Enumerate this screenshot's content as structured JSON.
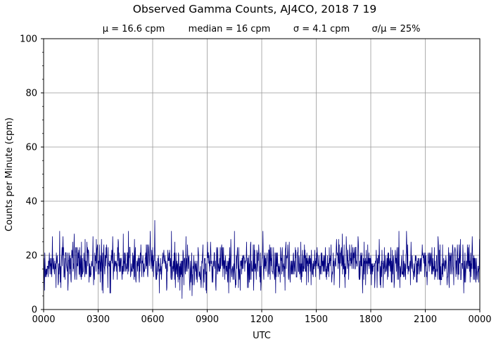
{
  "chart_data": {
    "type": "line",
    "title": "Observed Gamma Counts, AJ4CO, 2018 7 19",
    "subtitle": {
      "mean": "μ = 16.6 cpm",
      "median": "median = 16 cpm",
      "sigma": "σ = 4.1 cpm",
      "ratio": "σ/μ = 25%"
    },
    "xlabel": "UTC",
    "ylabel": "Counts per Minute (cpm)",
    "x_ticks": [
      "0000",
      "0300",
      "0600",
      "0900",
      "1200",
      "1500",
      "1800",
      "2100",
      "0000"
    ],
    "y_ticks": [
      0,
      20,
      40,
      60,
      80,
      100
    ],
    "ylim": [
      0,
      100
    ],
    "xlim_minutes": [
      0,
      1440
    ],
    "grid": true,
    "series": [
      {
        "color": "#000080",
        "samples_per_day": 1440,
        "baseline_cpm": 16.6,
        "spread_cpm": 4.1,
        "typical_min": 6,
        "typical_max": 29,
        "notable_peaks": [
          {
            "time": "0607",
            "cpm": 33
          },
          {
            "time": "1030",
            "cpm": 29
          },
          {
            "time": "0440",
            "cpm": 29
          },
          {
            "time": "1958",
            "cpm": 29
          }
        ],
        "notable_dips": [
          {
            "time": "0737",
            "cpm": 4
          },
          {
            "time": "0810",
            "cpm": 5
          }
        ]
      }
    ]
  }
}
